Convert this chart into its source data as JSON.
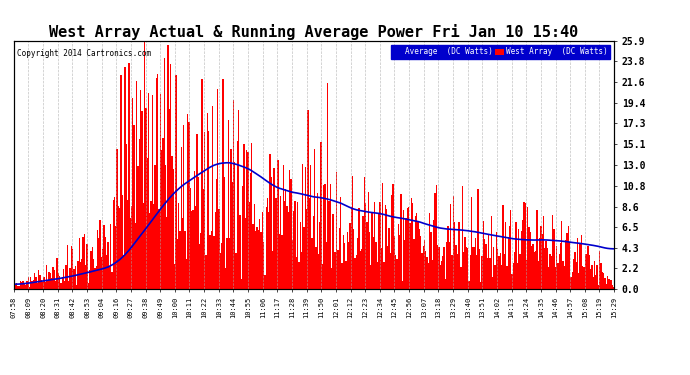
{
  "title": "West Array Actual & Running Average Power Fri Jan 10 15:40",
  "copyright": "Copyright 2014 Cartronics.com",
  "ylabel_right_ticks": [
    0.0,
    2.2,
    4.3,
    6.5,
    8.6,
    10.8,
    13.0,
    15.1,
    17.3,
    19.4,
    21.6,
    23.8,
    25.9
  ],
  "ylim": [
    0.0,
    25.9
  ],
  "legend_labels": [
    "Average  (DC Watts)",
    "West Array  (DC Watts)"
  ],
  "legend_colors": [
    "#0000cc",
    "#ff0000"
  ],
  "bar_color": "#ff0000",
  "line_color": "#0000cc",
  "background_color": "#ffffff",
  "grid_color": "#aaaaaa",
  "title_fontsize": 11,
  "x_labels": [
    "07:58",
    "08:09",
    "08:20",
    "08:31",
    "08:42",
    "08:53",
    "09:04",
    "09:16",
    "09:27",
    "09:38",
    "09:49",
    "10:00",
    "10:11",
    "10:22",
    "10:33",
    "10:44",
    "10:55",
    "11:06",
    "11:17",
    "11:28",
    "11:39",
    "11:50",
    "12:01",
    "12:12",
    "12:23",
    "12:34",
    "12:45",
    "12:56",
    "13:07",
    "13:18",
    "13:29",
    "13:40",
    "13:51",
    "14:02",
    "14:13",
    "14:24",
    "14:35",
    "14:46",
    "14:57",
    "15:08",
    "15:19",
    "15:29"
  ]
}
